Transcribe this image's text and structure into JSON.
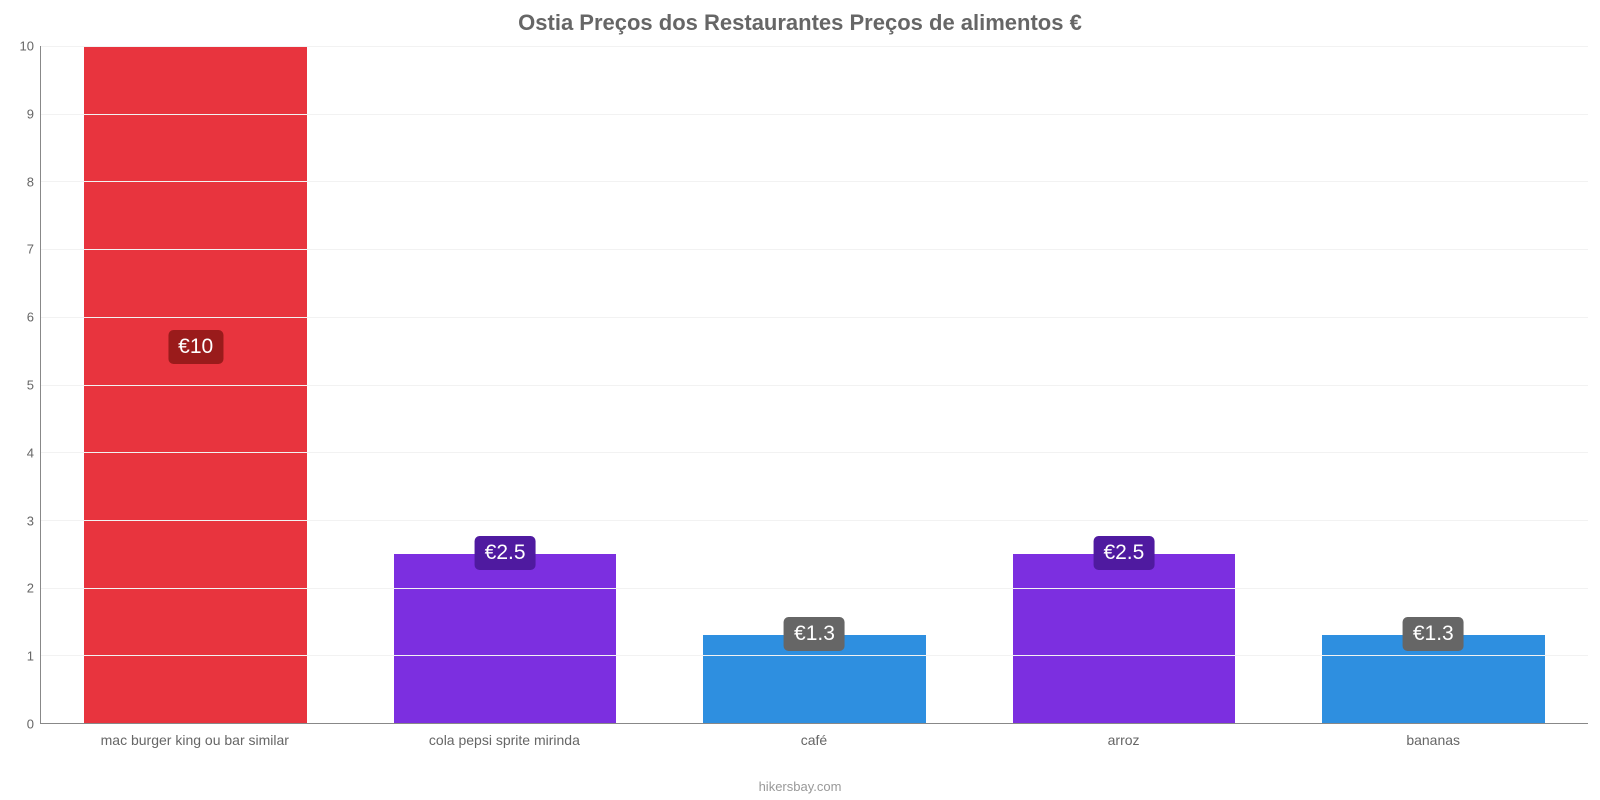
{
  "chart": {
    "type": "bar",
    "title": "Ostia Preços dos Restaurantes Preços de alimentos €",
    "title_color": "#666666",
    "title_fontsize": 22,
    "attribution": "hikersbay.com",
    "background_color": "#ffffff",
    "grid_color": "#f2f2f2",
    "axis_color": "#888888",
    "tick_label_color": "#666666",
    "tick_label_fontsize": 13,
    "x_label_fontsize": 14,
    "value_label_fontsize": 21,
    "ylim": [
      0,
      10
    ],
    "yticks": [
      0,
      1,
      2,
      3,
      4,
      5,
      6,
      7,
      8,
      9,
      10
    ],
    "bar_width_ratio": 0.72,
    "categories": [
      "mac burger king ou bar similar",
      "cola pepsi sprite mirinda",
      "café",
      "arroz",
      "bananas"
    ],
    "values": [
      10,
      2.5,
      1.3,
      2.5,
      1.3
    ],
    "value_labels": [
      "€10",
      "€2.5",
      "€1.3",
      "€2.5",
      "€1.3"
    ],
    "bar_colors": [
      "#e8343e",
      "#7c2fe0",
      "#2e8fe0",
      "#7c2fe0",
      "#2e8fe0"
    ],
    "label_bg_colors": [
      "#9a1b1b",
      "#4f1aa0",
      "#666666",
      "#4f1aa0",
      "#666666"
    ]
  }
}
